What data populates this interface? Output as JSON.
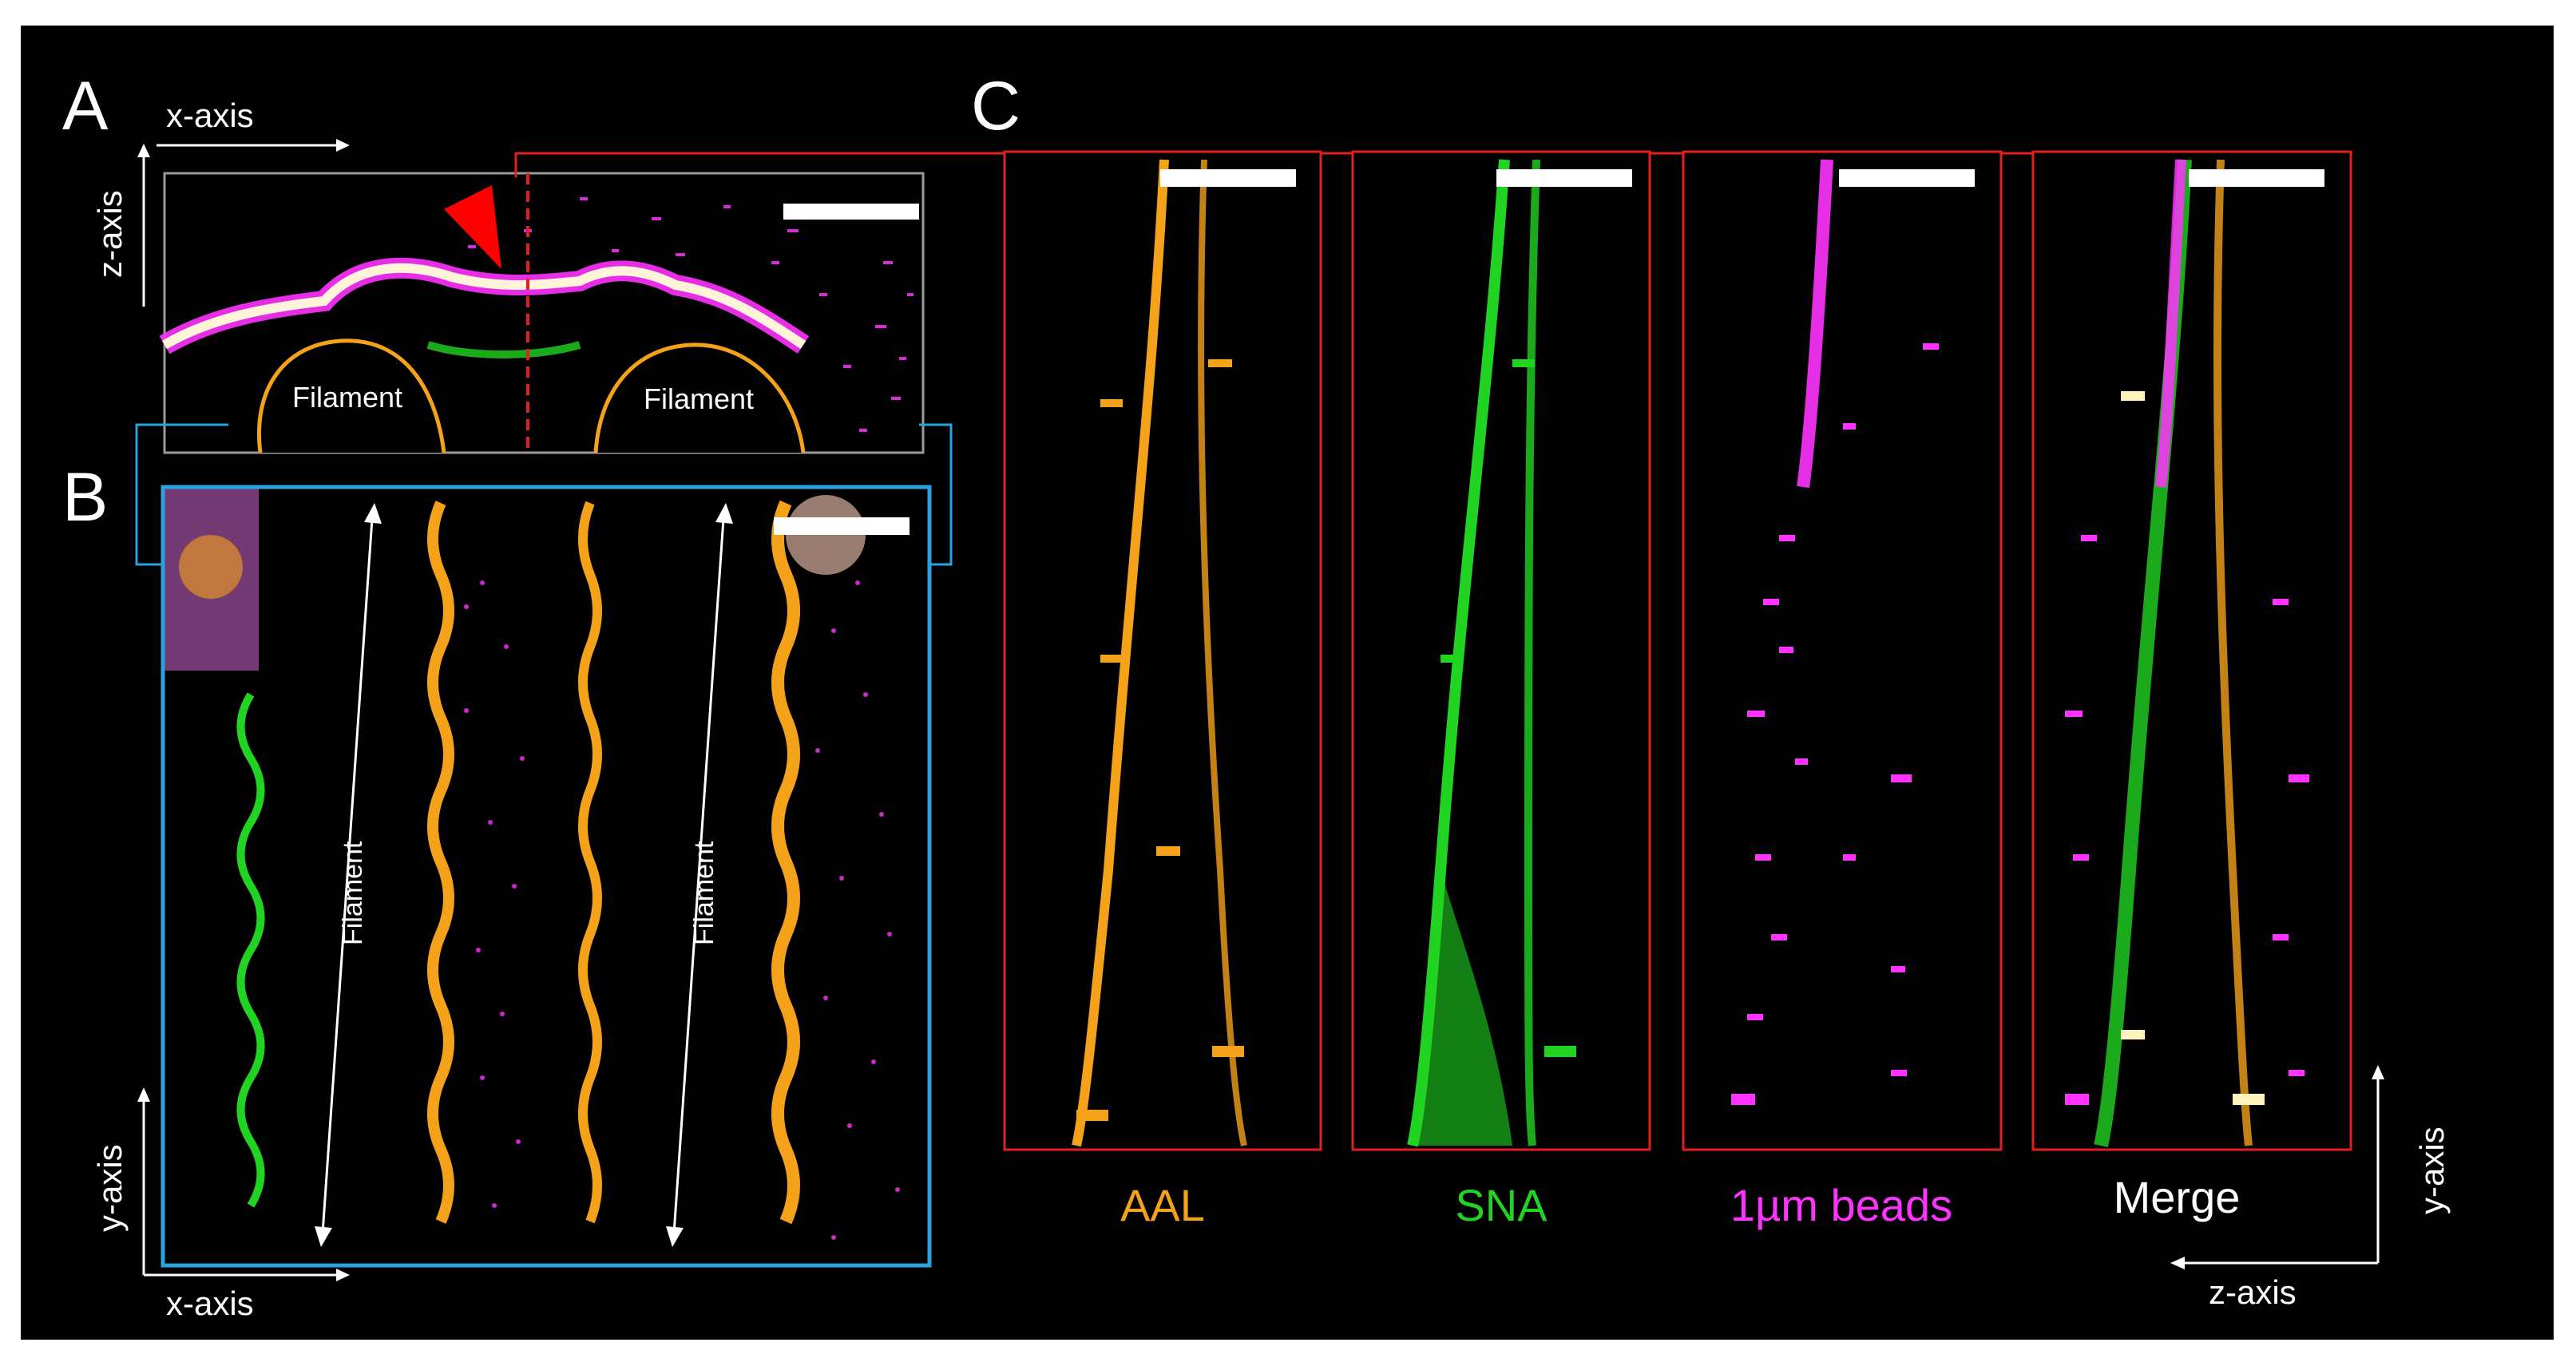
{
  "panels": {
    "a": {
      "letter": "A",
      "x_axis": "x-axis",
      "z_axis": "z-axis",
      "filament_left": "Filament",
      "filament_right": "Filament"
    },
    "b": {
      "letter": "B",
      "x_axis": "x-axis",
      "y_axis": "y-axis",
      "filament_left": "Filament",
      "filament_right": "Filament"
    },
    "c": {
      "letter": "C",
      "y_axis": "y-axis",
      "z_axis": "z-axis"
    }
  },
  "channels": [
    {
      "label": "AAL",
      "color": "#f5a21b"
    },
    {
      "label": "SNA",
      "color": "#22d422"
    },
    {
      "label": "1µm beads",
      "color": "#ff33ff"
    },
    {
      "label": "Merge",
      "color": "#ffffff"
    }
  ],
  "colors": {
    "background": "#000000",
    "frame_red": "#e0201e",
    "frame_blue": "#29a3e0",
    "frame_grey": "#9a9a9a",
    "orange": "#f5a21b",
    "green": "#22d422",
    "magenta": "#ff33ff",
    "arrowhead_red": "#ff0000"
  },
  "icons": {
    "marker": "red-arrowhead-icon",
    "scale_bar": "scale-bar"
  }
}
